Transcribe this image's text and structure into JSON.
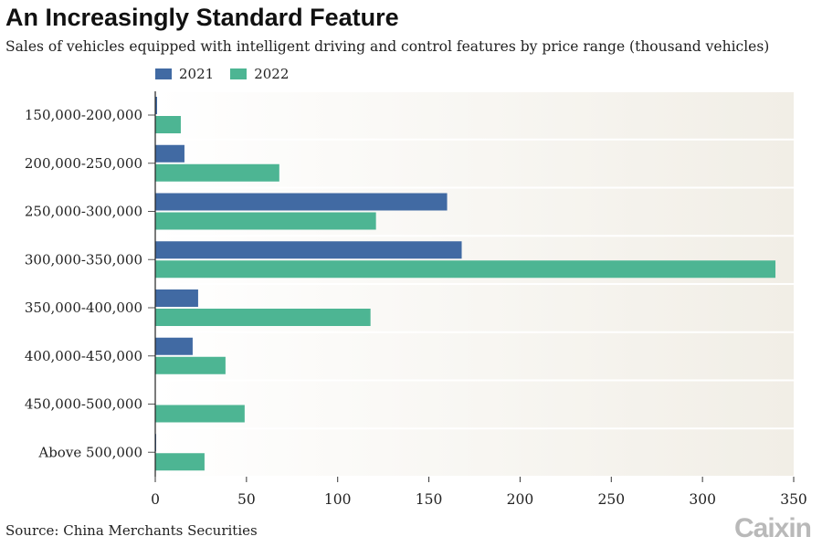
{
  "title": "An Increasingly Standard Feature",
  "subtitle": "Sales of vehicles equipped with intelligent driving and control features by price range (thousand vehicles)",
  "source": "Source: China Merchants Securities",
  "logo": "Caixin",
  "chart_data": {
    "type": "bar",
    "orientation": "horizontal",
    "categories": [
      "150,000-200,000",
      "200,000-250,000",
      "250,000-300,000",
      "300,000-350,000",
      "350,000-400,000",
      "400,000-450,000",
      "450,000-500,000",
      "Above 500,000"
    ],
    "series": [
      {
        "name": "2021",
        "color": "#416aa3",
        "values": [
          1,
          16,
          160,
          168,
          23.5,
          20.5,
          0,
          0.5
        ]
      },
      {
        "name": "2022",
        "color": "#4db593",
        "values": [
          14,
          68,
          121,
          340,
          118,
          38.5,
          49,
          27
        ]
      }
    ],
    "xlim": [
      0,
      350
    ],
    "xticks": [
      0,
      50,
      100,
      150,
      200,
      250,
      300,
      350
    ],
    "xlabel": "",
    "ylabel": "",
    "legend": "top-left",
    "grid": false
  }
}
